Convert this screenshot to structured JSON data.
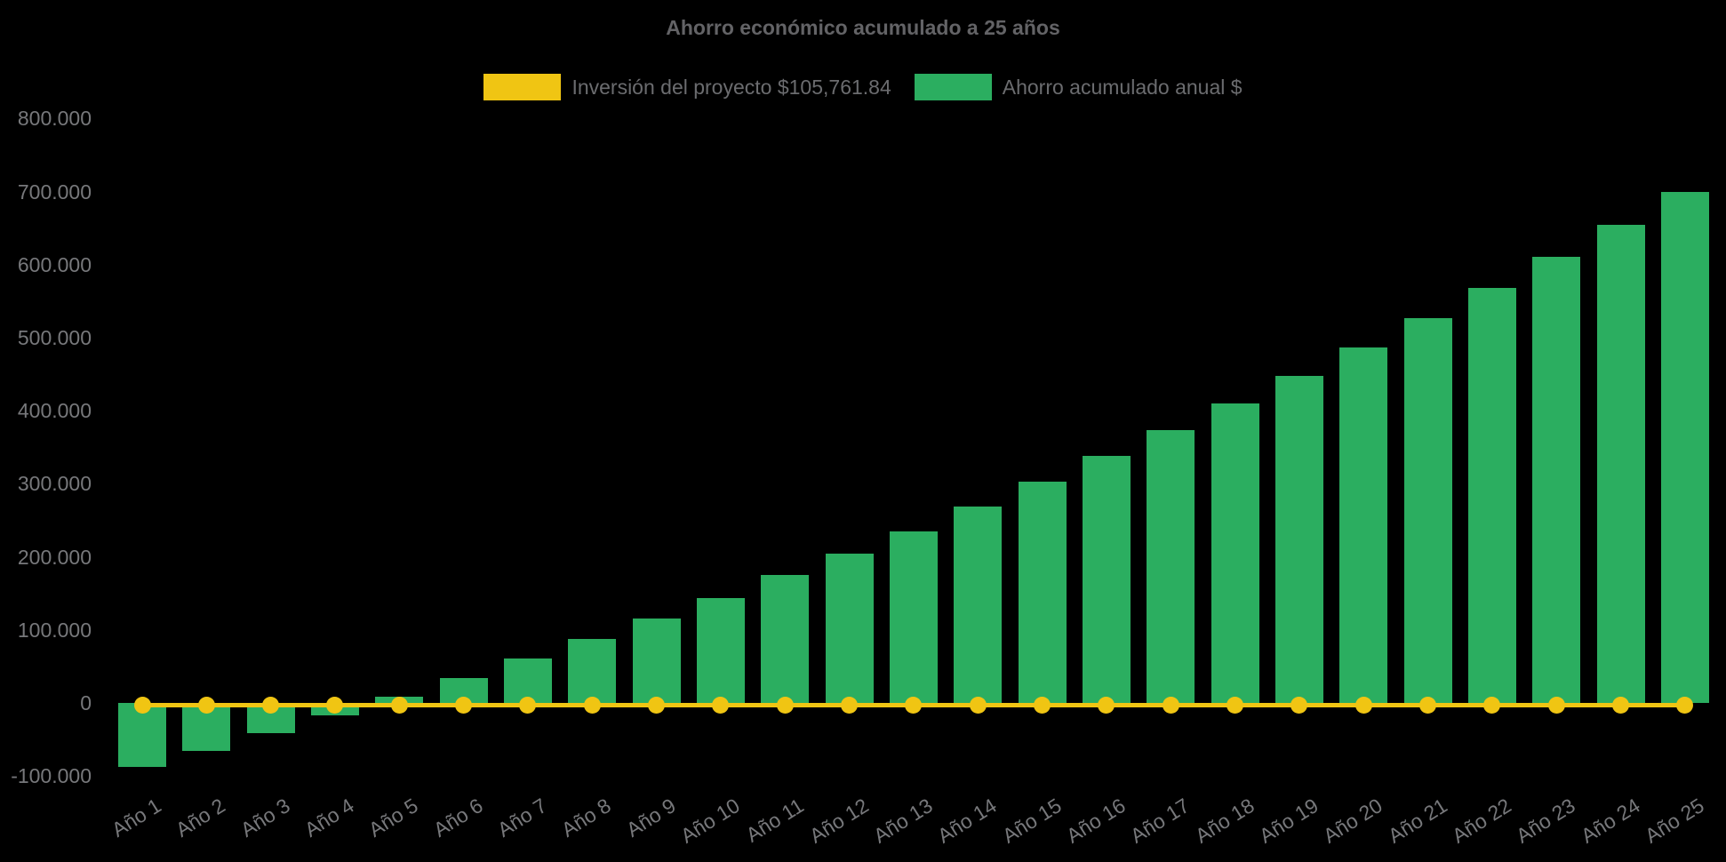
{
  "title": "Ahorro económico acumulado a 25 años",
  "legend": {
    "investment_label": "Inversión del proyecto $105,761.84",
    "savings_label": "Ahorro acumulado anual $"
  },
  "colors": {
    "background": "#000000",
    "green": "#2bae60",
    "yellow": "#f0c513",
    "title_text": "#636366",
    "legend_text": "#6b6c6f",
    "axis_text": "#77787b"
  },
  "chart_data": {
    "type": "bar",
    "title": "Ahorro económico acumulado a 25 años",
    "xlabel": "",
    "ylabel": "",
    "ylim": [
      -100000,
      800000
    ],
    "grid": false,
    "legend_position": "top",
    "x_tick_rotation": -32,
    "categories": [
      "Año 1",
      "Año 2",
      "Año 3",
      "Año 4",
      "Año 5",
      "Año 6",
      "Año 7",
      "Año 8",
      "Año 9",
      "Año 10",
      "Año 11",
      "Año 12",
      "Año 13",
      "Año 14",
      "Año 15",
      "Año 16",
      "Año 17",
      "Año 18",
      "Año 19",
      "Año 20",
      "Año 21",
      "Año 22",
      "Año 23",
      "Año 24",
      "Año 25"
    ],
    "y_ticks": [
      {
        "label": "800.000",
        "value": 800000
      },
      {
        "label": "700.000",
        "value": 700000
      },
      {
        "label": "600.000",
        "value": 600000
      },
      {
        "label": "500.000",
        "value": 500000
      },
      {
        "label": "400.000",
        "value": 400000
      },
      {
        "label": "300.000",
        "value": 300000
      },
      {
        "label": "200.000",
        "value": 200000
      },
      {
        "label": "100.000",
        "value": 100000
      },
      {
        "label": "0",
        "value": 0
      },
      {
        "label": "-100.000",
        "value": -100000
      }
    ],
    "series": [
      {
        "name": "Ahorro acumulado anual $",
        "type": "bar",
        "color": "#2bae60",
        "values": [
          -88000,
          -66000,
          -41000,
          -17000,
          9000,
          34000,
          61000,
          88000,
          115000,
          144000,
          175000,
          204000,
          235000,
          269000,
          303000,
          338000,
          373000,
          410000,
          448000,
          487000,
          527000,
          568000,
          611000,
          654000,
          700000
        ]
      },
      {
        "name": "Inversión del proyecto $105,761.84",
        "type": "line",
        "color": "#f0c513",
        "values": [
          0,
          0,
          0,
          0,
          0,
          0,
          0,
          0,
          0,
          0,
          0,
          0,
          0,
          0,
          0,
          0,
          0,
          0,
          0,
          0,
          0,
          0,
          0,
          0,
          0
        ]
      }
    ]
  }
}
